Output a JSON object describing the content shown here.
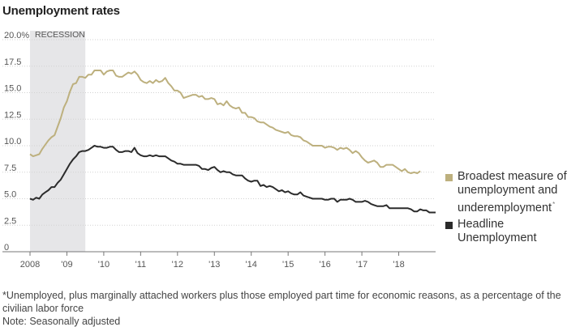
{
  "title": "Unemployment rates",
  "chart_data": {
    "type": "line",
    "title": "Unemployment rates",
    "xlabel": "",
    "ylabel": "",
    "ylim": [
      0,
      20
    ],
    "xlim": [
      2008.0,
      2019.0
    ],
    "yticks": [
      {
        "value": 0,
        "label": "0"
      },
      {
        "value": 2.5,
        "label": "2.5"
      },
      {
        "value": 5,
        "label": "5.0"
      },
      {
        "value": 7.5,
        "label": "7.5"
      },
      {
        "value": 10,
        "label": "10.0"
      },
      {
        "value": 12.5,
        "label": "12.5"
      },
      {
        "value": 15,
        "label": "15.0"
      },
      {
        "value": 17.5,
        "label": "17.5"
      },
      {
        "value": 20,
        "label": "20.0%"
      }
    ],
    "xticks": [
      {
        "value": 2008,
        "label": "2008"
      },
      {
        "value": 2009,
        "label": "'09"
      },
      {
        "value": 2010,
        "label": "'10"
      },
      {
        "value": 2011,
        "label": "'11"
      },
      {
        "value": 2012,
        "label": "'12"
      },
      {
        "value": 2013,
        "label": "'13"
      },
      {
        "value": 2014,
        "label": "'14"
      },
      {
        "value": 2015,
        "label": "'15"
      },
      {
        "value": 2016,
        "label": "'16"
      },
      {
        "value": 2017,
        "label": "'17"
      },
      {
        "value": 2018,
        "label": "'18"
      }
    ],
    "recession": {
      "label": "RECESSION",
      "start": 2008.0,
      "end": 2009.5
    },
    "grid": true,
    "series": [
      {
        "name": "Broadest measure of unemployment and underemployment",
        "color": "#bdb07e",
        "start": 2008.0,
        "step_months": 1,
        "values": [
          9.2,
          9.0,
          9.1,
          9.2,
          9.7,
          10.1,
          10.5,
          10.8,
          11.0,
          11.8,
          12.6,
          13.6,
          14.2,
          15.1,
          15.8,
          15.9,
          16.5,
          16.5,
          16.4,
          16.7,
          16.7,
          17.1,
          17.1,
          17.1,
          16.7,
          17.0,
          17.1,
          17.1,
          16.6,
          16.5,
          16.5,
          16.7,
          16.9,
          16.8,
          17.0,
          16.7,
          16.2,
          16.0,
          15.9,
          16.1,
          15.9,
          16.2,
          16.0,
          16.1,
          16.4,
          15.9,
          15.6,
          15.2,
          15.2,
          15.0,
          14.5,
          14.6,
          14.7,
          14.8,
          14.8,
          14.6,
          14.7,
          14.4,
          14.4,
          14.5,
          14.4,
          13.9,
          14.0,
          13.8,
          14.2,
          13.8,
          13.6,
          13.5,
          13.6,
          13.1,
          13.1,
          12.7,
          12.7,
          12.6,
          12.3,
          12.2,
          12.2,
          12.0,
          11.8,
          11.7,
          11.5,
          11.4,
          11.3,
          11.2,
          11.3,
          11.0,
          10.9,
          10.9,
          10.8,
          10.5,
          10.4,
          10.2,
          10.0,
          10.0,
          10.0,
          10.0,
          9.8,
          9.9,
          9.9,
          9.8,
          9.6,
          9.8,
          9.7,
          9.8,
          9.6,
          9.3,
          9.5,
          9.3,
          8.9,
          8.6,
          8.4,
          8.5,
          8.6,
          8.4,
          8.0,
          8.0,
          8.2,
          8.2,
          8.2,
          8.0,
          7.8,
          7.6,
          7.8,
          7.5,
          7.4,
          7.5,
          7.4,
          7.6
        ]
      },
      {
        "name": "Headline Unemployment",
        "color": "#2b2b2b",
        "start": 2008.0,
        "step_months": 1,
        "values": [
          5.0,
          4.9,
          5.1,
          5.0,
          5.4,
          5.6,
          5.8,
          6.1,
          6.1,
          6.5,
          6.8,
          7.3,
          7.8,
          8.3,
          8.7,
          9.0,
          9.4,
          9.5,
          9.5,
          9.6,
          9.8,
          10.0,
          9.9,
          9.9,
          9.8,
          9.8,
          9.9,
          9.9,
          9.6,
          9.4,
          9.4,
          9.5,
          9.5,
          9.4,
          9.8,
          9.3,
          9.1,
          9.0,
          9.0,
          9.1,
          9.0,
          9.1,
          9.0,
          9.0,
          9.0,
          8.8,
          8.6,
          8.5,
          8.3,
          8.3,
          8.2,
          8.2,
          8.2,
          8.2,
          8.2,
          8.1,
          7.8,
          7.8,
          7.7,
          7.9,
          8.0,
          7.7,
          7.5,
          7.6,
          7.5,
          7.5,
          7.3,
          7.2,
          7.2,
          7.2,
          6.9,
          6.7,
          6.6,
          6.7,
          6.7,
          6.2,
          6.3,
          6.1,
          6.2,
          6.1,
          5.9,
          5.7,
          5.8,
          5.6,
          5.7,
          5.5,
          5.4,
          5.4,
          5.6,
          5.3,
          5.2,
          5.1,
          5.0,
          5.0,
          5.0,
          5.0,
          4.9,
          4.9,
          5.0,
          5.0,
          4.7,
          4.9,
          4.9,
          4.9,
          5.0,
          4.9,
          4.7,
          4.7,
          4.7,
          4.8,
          4.7,
          4.5,
          4.4,
          4.3,
          4.3,
          4.3,
          4.4,
          4.1,
          4.1,
          4.1,
          4.1,
          4.1,
          4.1,
          4.1,
          4.0,
          3.8,
          3.8,
          4.0,
          3.9,
          3.9,
          3.7,
          3.7,
          3.7
        ]
      }
    ]
  },
  "legend": {
    "items": [
      {
        "label_lines": [
          "Broadest measure of",
          "unemployment and",
          "underemployment"
        ],
        "sup": "*",
        "color": "#bdb07e"
      },
      {
        "label_lines": [
          "Headline",
          "Unemployment"
        ],
        "color": "#2b2b2b"
      }
    ]
  },
  "footnote": "*Unemployed, plus marginally attached workers plus those employed part time for economic reasons, as a percentage of the civilian labor force",
  "note": "Note: Seasonally adjusted"
}
